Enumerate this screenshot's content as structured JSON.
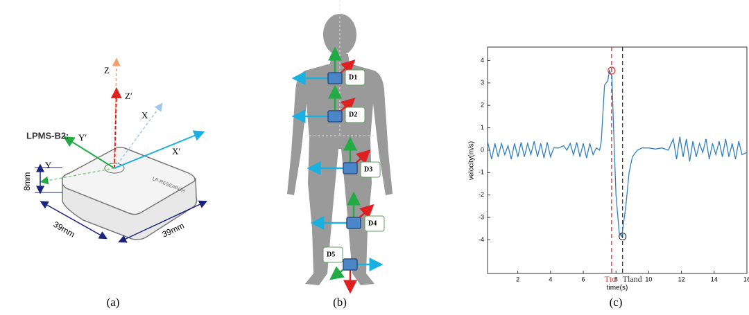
{
  "device": {
    "title": "LPMS-B2:",
    "brand": "LP-RESEARCH",
    "axes": [
      "Z",
      "Z′",
      "X",
      "Y′",
      "X′",
      "Y"
    ],
    "height": "8mm",
    "width": "39mm",
    "depth": "39mm"
  },
  "body": {
    "sensors": [
      "D1",
      "D2",
      "D3",
      "D4",
      "D5"
    ]
  },
  "captions": [
    "(a)",
    "(b)",
    "(c)"
  ],
  "chart_data": {
    "type": "line",
    "xlabel": "time(s)",
    "ylabel": "velocity(m/s)",
    "x": [
      0.15,
      0.4,
      0.6,
      0.8,
      1.0,
      1.2,
      1.4,
      1.6,
      1.8,
      2.0,
      2.2,
      2.4,
      2.6,
      2.8,
      3.0,
      3.2,
      3.4,
      3.6,
      3.8,
      4.0,
      4.2,
      4.5,
      4.8,
      5.0,
      5.2,
      5.4,
      5.6,
      5.8,
      6.0,
      6.2,
      6.4,
      6.6,
      6.8,
      7.0,
      7.1,
      7.3,
      7.5,
      7.6,
      7.75,
      7.85,
      8.0,
      8.2,
      8.35,
      8.6,
      8.8,
      9.0,
      9.3,
      9.6,
      10.0,
      10.4,
      10.8,
      11.2,
      11.5,
      11.7,
      11.9,
      12.1,
      12.3,
      12.5,
      12.7,
      12.9,
      13.1,
      13.3,
      13.5,
      13.7,
      13.9,
      14.1,
      14.3,
      14.5,
      14.7,
      14.9,
      15.1,
      15.3,
      15.5,
      15.7,
      16.0
    ],
    "series": [
      {
        "name": "velocity",
        "color": "#2f7fc1",
        "values": [
          0.4,
          -0.4,
          0.3,
          -0.3,
          0.3,
          -0.2,
          0.2,
          -0.4,
          0.3,
          -0.3,
          0.35,
          -0.3,
          0.3,
          -0.2,
          0.4,
          -0.3,
          0.3,
          -0.35,
          0.35,
          -0.3,
          0.1,
          0.1,
          0.2,
          0,
          0.3,
          -0.2,
          0.35,
          -0.3,
          0.3,
          -0.35,
          0.3,
          -0.2,
          0.1,
          0,
          0.4,
          2.9,
          3.1,
          3.55,
          3.3,
          1.0,
          -2.0,
          -3.7,
          -3.85,
          -2.5,
          -1.0,
          -0.3,
          0,
          0.1,
          0.1,
          0.05,
          0.1,
          0,
          0.5,
          -0.4,
          0.6,
          -0.3,
          0.5,
          -0.5,
          0.4,
          -0.3,
          0.3,
          -0.1,
          0.5,
          -0.4,
          0.3,
          -0.2,
          0.4,
          -0.3,
          0.5,
          -0.3,
          0.3,
          -0.4,
          0.4,
          -0.2,
          -0.1
        ]
      }
    ],
    "xlim": [
      0.15,
      16
    ],
    "ylim": [
      -5.5,
      4.6
    ],
    "xticks": [
      2,
      4,
      6,
      8,
      10,
      12,
      14,
      16
    ],
    "yticks": [
      4,
      3,
      2,
      1,
      0,
      -1,
      -2,
      -3,
      -4
    ],
    "annotations": [
      {
        "text": "Tto",
        "x": 7.73,
        "color": "#e03030",
        "peak": 3.55
      },
      {
        "text": "Tland",
        "x": 8.4,
        "color": "#333333",
        "peak": -3.85
      }
    ]
  }
}
